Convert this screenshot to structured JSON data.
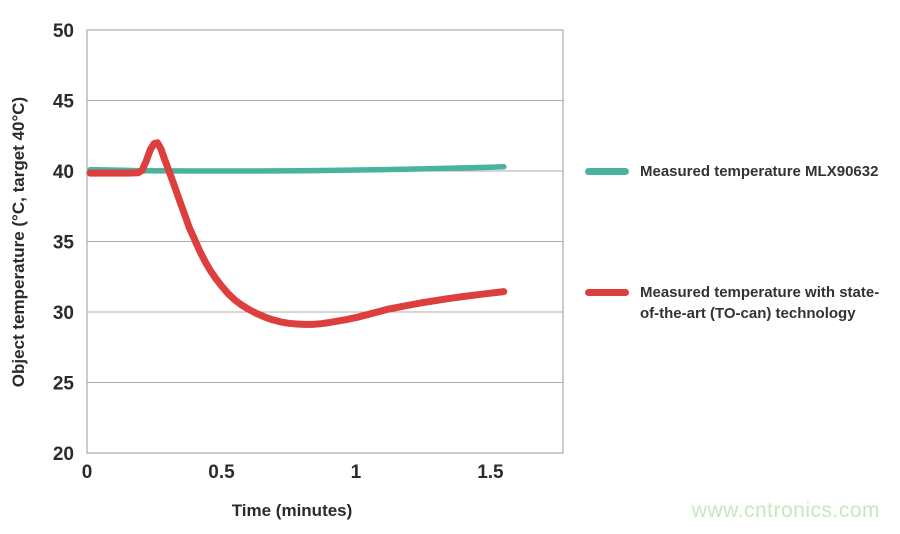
{
  "chart_data": {
    "type": "line",
    "title": "",
    "xlabel": "Time (minutes)",
    "ylabel": "Object temperature (°C, target 40°C)",
    "xlim": [
      0,
      1.77
    ],
    "ylim": [
      20,
      50
    ],
    "x_ticks": [
      0,
      0.5,
      1,
      1.5
    ],
    "x_tick_labels": [
      "0",
      "0.5",
      "1",
      "1.5"
    ],
    "y_ticks": [
      20,
      25,
      30,
      35,
      40,
      45,
      50
    ],
    "grid": "horizontal",
    "legend_position": "right",
    "colors": {
      "grid": "#ababab",
      "tick_text": "#2b2b2b",
      "background": "#ffffff",
      "teal_series": "#4bb2a0",
      "red_series": "#dd3e3e"
    },
    "series": [
      {
        "name": "Measured temperature MLX90632",
        "color": "#4bb2a0",
        "width": 5.5,
        "points": [
          [
            0.012,
            40.1
          ],
          [
            0.2,
            40.02
          ],
          [
            0.4,
            40.0
          ],
          [
            0.6,
            40.0
          ],
          [
            0.8,
            40.02
          ],
          [
            0.95,
            40.05
          ],
          [
            1.1,
            40.1
          ],
          [
            1.25,
            40.15
          ],
          [
            1.4,
            40.22
          ],
          [
            1.5,
            40.27
          ],
          [
            1.55,
            40.3
          ]
        ]
      },
      {
        "name": "Measured temperature with state-of-the-art (TO-can) technology",
        "color": "#dd3e3e",
        "width": 7,
        "points": [
          [
            0.012,
            39.85
          ],
          [
            0.05,
            39.85
          ],
          [
            0.1,
            39.85
          ],
          [
            0.15,
            39.85
          ],
          [
            0.19,
            39.87
          ],
          [
            0.205,
            40.05
          ],
          [
            0.22,
            40.7
          ],
          [
            0.235,
            41.5
          ],
          [
            0.25,
            41.95
          ],
          [
            0.262,
            42.0
          ],
          [
            0.275,
            41.55
          ],
          [
            0.29,
            40.75
          ],
          [
            0.305,
            40.0
          ],
          [
            0.32,
            39.2
          ],
          [
            0.335,
            38.4
          ],
          [
            0.35,
            37.6
          ],
          [
            0.365,
            36.8
          ],
          [
            0.38,
            36.0
          ],
          [
            0.4,
            35.15
          ],
          [
            0.42,
            34.3
          ],
          [
            0.44,
            33.55
          ],
          [
            0.46,
            32.9
          ],
          [
            0.48,
            32.35
          ],
          [
            0.5,
            31.85
          ],
          [
            0.525,
            31.3
          ],
          [
            0.55,
            30.85
          ],
          [
            0.575,
            30.5
          ],
          [
            0.6,
            30.2
          ],
          [
            0.63,
            29.9
          ],
          [
            0.66,
            29.65
          ],
          [
            0.69,
            29.45
          ],
          [
            0.72,
            29.3
          ],
          [
            0.75,
            29.2
          ],
          [
            0.78,
            29.15
          ],
          [
            0.81,
            29.12
          ],
          [
            0.84,
            29.12
          ],
          [
            0.87,
            29.17
          ],
          [
            0.9,
            29.25
          ],
          [
            0.93,
            29.35
          ],
          [
            0.96,
            29.45
          ],
          [
            1.0,
            29.6
          ],
          [
            1.04,
            29.8
          ],
          [
            1.08,
            30.0
          ],
          [
            1.12,
            30.2
          ],
          [
            1.16,
            30.35
          ],
          [
            1.2,
            30.5
          ],
          [
            1.25,
            30.67
          ],
          [
            1.3,
            30.82
          ],
          [
            1.35,
            30.97
          ],
          [
            1.4,
            31.1
          ],
          [
            1.45,
            31.22
          ],
          [
            1.5,
            31.33
          ],
          [
            1.55,
            31.45
          ]
        ]
      }
    ]
  },
  "watermark": {
    "text": "www.cntronics.com",
    "color": "#c8e7bb"
  }
}
